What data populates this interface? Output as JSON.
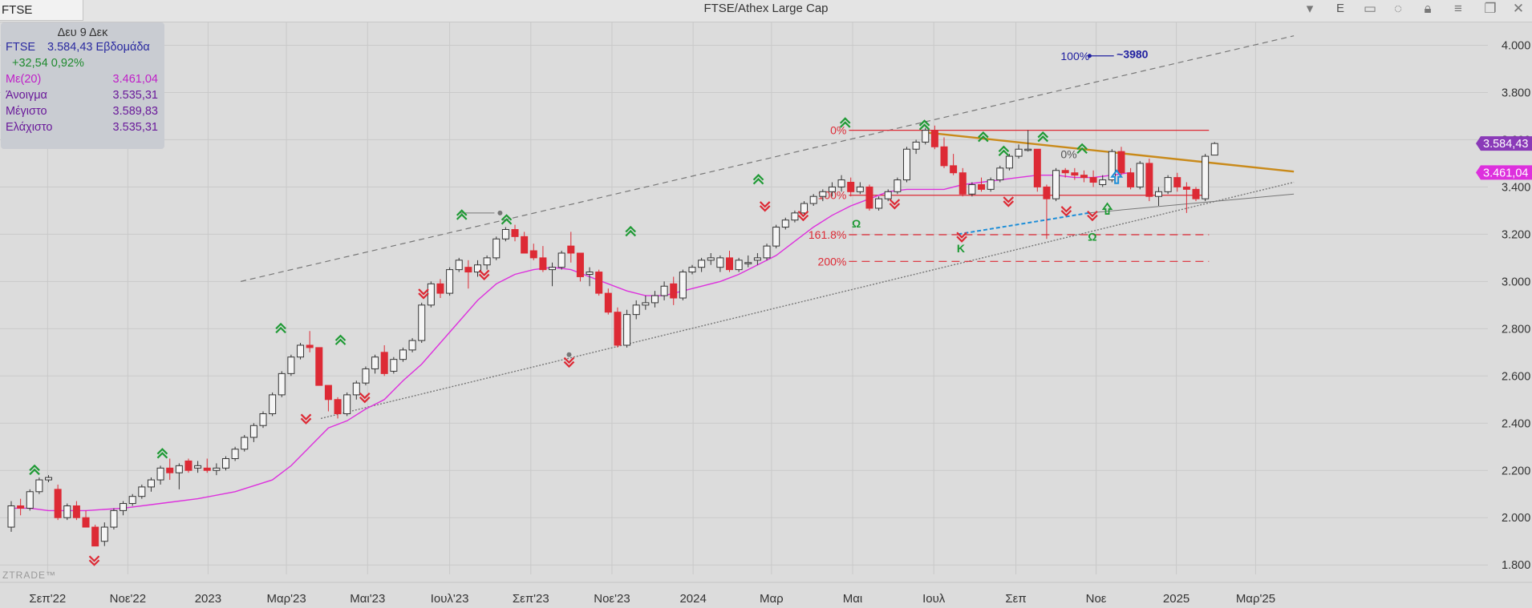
{
  "titlebar": {
    "symbol": "FTSE",
    "title": "FTSE/Athex Large Cap",
    "buttons": [
      "chevron-down-icon",
      "E",
      "layout-icon",
      "comment-icon",
      "lock-icon",
      "menu-icon",
      "restore-icon",
      "close-icon"
    ],
    "e_label": "E"
  },
  "info_panel": {
    "date": "Δευ 9 Δεκ",
    "symbol": "FTSE",
    "price_period": "3.584,43 Εβδομάδα",
    "change": "+32,54 0,92%",
    "ma_label": "Με(20)",
    "ma_value": "3.461,04",
    "open_label": "Άνοιγμα",
    "open_value": "3.535,31",
    "high_label": "Μέγιστο",
    "high_value": "3.589,83",
    "low_label": "Ελάχιστο",
    "low_value": "3.535,31"
  },
  "watermark": "ZTRADE™",
  "colors": {
    "bg": "#dcdcdc",
    "up": "#f5f5f5",
    "down": "#dd2a35",
    "ma": "#dd30dd",
    "orange": "#c98a1a",
    "blue": "#1e8ed8",
    "green": "#2a9a3a",
    "purple_text": "#8a1ea0"
  },
  "chart_data": {
    "type": "candlestick",
    "title": "FTSE/Athex Large Cap",
    "interval": "weekly",
    "ylim": [
      1760,
      4100
    ],
    "y_ticks": [
      "1.800",
      "2.000",
      "2.200",
      "2.400",
      "2.600",
      "2.800",
      "3.000",
      "3.200",
      "3.400",
      "3.600",
      "3.800",
      "4.000"
    ],
    "y_tick_values": [
      1800,
      2000,
      2200,
      2400,
      2600,
      2800,
      3000,
      3200,
      3400,
      3600,
      3800,
      4000
    ],
    "x_ticks": [
      "Σεπ'22",
      "Νοε'22",
      "2023",
      "Μαρ'23",
      "Μαι'23",
      "Ιουλ'23",
      "Σεπ'23",
      "Νοε'23",
      "2024",
      "Μαρ",
      "Μαι",
      "Ιουλ",
      "Σεπ",
      "Νοε",
      "2025",
      "Μαρ'25"
    ],
    "x_tick_weeks": [
      3.9,
      12.5,
      21.1,
      29.5,
      38.2,
      47.0,
      55.7,
      64.4,
      73.1,
      81.5,
      90.2,
      98.9,
      107.7,
      116.3,
      124.9,
      133.4
    ],
    "current_price_label": "3.584,43",
    "ma_price_label": "3.461,04",
    "candles": [
      [
        1960,
        2070,
        1940,
        2050
      ],
      [
        2050,
        2080,
        2010,
        2040
      ],
      [
        2040,
        2120,
        2030,
        2110
      ],
      [
        2110,
        2170,
        2100,
        2160
      ],
      [
        2160,
        2180,
        2150,
        2170
      ],
      [
        2120,
        2140,
        1990,
        2000
      ],
      [
        2000,
        2060,
        1990,
        2050
      ],
      [
        2050,
        2070,
        1990,
        2000
      ],
      [
        2000,
        2030,
        1960,
        1960
      ],
      [
        1960,
        1970,
        1880,
        1880
      ],
      [
        1900,
        1980,
        1880,
        1960
      ],
      [
        1960,
        2040,
        1950,
        2030
      ],
      [
        2030,
        2070,
        2010,
        2060
      ],
      [
        2060,
        2100,
        2050,
        2090
      ],
      [
        2090,
        2140,
        2080,
        2130
      ],
      [
        2130,
        2170,
        2110,
        2160
      ],
      [
        2160,
        2220,
        2140,
        2210
      ],
      [
        2210,
        2250,
        2160,
        2190
      ],
      [
        2190,
        2230,
        2120,
        2220
      ],
      [
        2240,
        2250,
        2190,
        2200
      ],
      [
        2210,
        2240,
        2190,
        2220
      ],
      [
        2210,
        2250,
        2190,
        2200
      ],
      [
        2200,
        2230,
        2180,
        2210
      ],
      [
        2210,
        2260,
        2200,
        2250
      ],
      [
        2250,
        2300,
        2240,
        2290
      ],
      [
        2290,
        2350,
        2280,
        2340
      ],
      [
        2340,
        2400,
        2320,
        2390
      ],
      [
        2390,
        2450,
        2380,
        2440
      ],
      [
        2440,
        2530,
        2430,
        2520
      ],
      [
        2520,
        2620,
        2510,
        2610
      ],
      [
        2610,
        2690,
        2600,
        2680
      ],
      [
        2680,
        2740,
        2670,
        2730
      ],
      [
        2730,
        2790,
        2700,
        2720
      ],
      [
        2720,
        2720,
        2560,
        2560
      ],
      [
        2560,
        2560,
        2450,
        2500
      ],
      [
        2500,
        2510,
        2420,
        2440
      ],
      [
        2440,
        2530,
        2430,
        2520
      ],
      [
        2520,
        2580,
        2500,
        2570
      ],
      [
        2570,
        2640,
        2560,
        2630
      ],
      [
        2630,
        2690,
        2610,
        2680
      ],
      [
        2700,
        2730,
        2600,
        2610
      ],
      [
        2620,
        2680,
        2610,
        2670
      ],
      [
        2670,
        2720,
        2660,
        2710
      ],
      [
        2710,
        2760,
        2700,
        2750
      ],
      [
        2750,
        2910,
        2740,
        2900
      ],
      [
        2900,
        3000,
        2890,
        2990
      ],
      [
        2990,
        3010,
        2930,
        2950
      ],
      [
        2950,
        3060,
        2940,
        3050
      ],
      [
        3050,
        3100,
        3040,
        3090
      ],
      [
        3060,
        3090,
        2970,
        3040
      ],
      [
        3040,
        3090,
        3020,
        3070
      ],
      [
        3070,
        3110,
        3050,
        3100
      ],
      [
        3100,
        3190,
        3090,
        3180
      ],
      [
        3180,
        3230,
        3170,
        3220
      ],
      [
        3220,
        3240,
        3170,
        3190
      ],
      [
        3190,
        3210,
        3120,
        3120
      ],
      [
        3130,
        3160,
        3090,
        3100
      ],
      [
        3100,
        3150,
        3040,
        3050
      ],
      [
        3050,
        3080,
        2980,
        3060
      ],
      [
        3060,
        3130,
        3050,
        3120
      ],
      [
        3150,
        3210,
        3080,
        3120
      ],
      [
        3120,
        3120,
        3000,
        3020
      ],
      [
        3030,
        3060,
        2980,
        3040
      ],
      [
        3040,
        3050,
        2940,
        2950
      ],
      [
        2950,
        2970,
        2860,
        2870
      ],
      [
        2870,
        2890,
        2720,
        2730
      ],
      [
        2730,
        2880,
        2720,
        2860
      ],
      [
        2860,
        2920,
        2840,
        2900
      ],
      [
        2900,
        2940,
        2880,
        2910
      ],
      [
        2910,
        2960,
        2890,
        2940
      ],
      [
        2940,
        3000,
        2920,
        2980
      ],
      [
        2990,
        3020,
        2900,
        2930
      ],
      [
        2930,
        3050,
        2920,
        3040
      ],
      [
        3040,
        3070,
        3030,
        3060
      ],
      [
        3060,
        3100,
        3040,
        3090
      ],
      [
        3090,
        3120,
        3070,
        3100
      ],
      [
        3060,
        3110,
        3040,
        3100
      ],
      [
        3100,
        3130,
        3040,
        3050
      ],
      [
        3050,
        3100,
        3040,
        3090
      ],
      [
        3080,
        3110,
        3060,
        3080
      ],
      [
        3090,
        3120,
        3070,
        3100
      ],
      [
        3100,
        3160,
        3090,
        3150
      ],
      [
        3150,
        3240,
        3140,
        3230
      ],
      [
        3230,
        3270,
        3220,
        3260
      ],
      [
        3260,
        3300,
        3250,
        3290
      ],
      [
        3290,
        3340,
        3280,
        3330
      ],
      [
        3330,
        3370,
        3320,
        3360
      ],
      [
        3360,
        3390,
        3340,
        3380
      ],
      [
        3380,
        3420,
        3360,
        3400
      ],
      [
        3400,
        3450,
        3380,
        3430
      ],
      [
        3420,
        3440,
        3360,
        3380
      ],
      [
        3380,
        3420,
        3370,
        3400
      ],
      [
        3400,
        3410,
        3300,
        3310
      ],
      [
        3310,
        3360,
        3300,
        3350
      ],
      [
        3350,
        3390,
        3340,
        3380
      ],
      [
        3380,
        3440,
        3370,
        3430
      ],
      [
        3430,
        3570,
        3420,
        3560
      ],
      [
        3560,
        3600,
        3540,
        3590
      ],
      [
        3590,
        3650,
        3580,
        3640
      ],
      [
        3640,
        3660,
        3560,
        3570
      ],
      [
        3570,
        3610,
        3480,
        3490
      ],
      [
        3490,
        3540,
        3450,
        3460
      ],
      [
        3460,
        3480,
        3360,
        3370
      ],
      [
        3370,
        3420,
        3360,
        3410
      ],
      [
        3410,
        3440,
        3380,
        3390
      ],
      [
        3390,
        3440,
        3380,
        3430
      ],
      [
        3430,
        3490,
        3420,
        3480
      ],
      [
        3480,
        3540,
        3470,
        3530
      ],
      [
        3530,
        3580,
        3520,
        3560
      ],
      [
        3560,
        3640,
        3550,
        3560
      ],
      [
        3560,
        3560,
        3380,
        3400
      ],
      [
        3400,
        3410,
        3180,
        3350
      ],
      [
        3350,
        3480,
        3340,
        3470
      ],
      [
        3470,
        3480,
        3440,
        3460
      ],
      [
        3460,
        3480,
        3430,
        3450
      ],
      [
        3450,
        3470,
        3420,
        3440
      ],
      [
        3440,
        3470,
        3400,
        3420
      ],
      [
        3410,
        3450,
        3400,
        3430
      ],
      [
        3430,
        3560,
        3420,
        3550
      ],
      [
        3550,
        3570,
        3450,
        3460
      ],
      [
        3460,
        3480,
        3390,
        3400
      ],
      [
        3400,
        3510,
        3390,
        3500
      ],
      [
        3500,
        3520,
        3340,
        3360
      ],
      [
        3360,
        3400,
        3320,
        3380
      ],
      [
        3380,
        3450,
        3370,
        3440
      ],
      [
        3440,
        3460,
        3380,
        3400
      ],
      [
        3400,
        3420,
        3290,
        3390
      ],
      [
        3390,
        3400,
        3340,
        3350
      ],
      [
        3350,
        3540,
        3340,
        3530
      ],
      [
        3535,
        3590,
        3535,
        3584
      ]
    ],
    "ma20": [
      [
        0,
        2040
      ],
      [
        2,
        2040
      ],
      [
        4,
        2030
      ],
      [
        8,
        2030
      ],
      [
        12,
        2040
      ],
      [
        16,
        2060
      ],
      [
        20,
        2080
      ],
      [
        24,
        2110
      ],
      [
        28,
        2160
      ],
      [
        30,
        2220
      ],
      [
        32,
        2300
      ],
      [
        34,
        2380
      ],
      [
        36,
        2410
      ],
      [
        38,
        2460
      ],
      [
        40,
        2500
      ],
      [
        42,
        2580
      ],
      [
        44,
        2650
      ],
      [
        46,
        2740
      ],
      [
        48,
        2830
      ],
      [
        50,
        2920
      ],
      [
        52,
        2990
      ],
      [
        54,
        3030
      ],
      [
        56,
        3050
      ],
      [
        58,
        3060
      ],
      [
        60,
        3050
      ],
      [
        62,
        3020
      ],
      [
        64,
        2990
      ],
      [
        66,
        2960
      ],
      [
        68,
        2940
      ],
      [
        70,
        2940
      ],
      [
        72,
        2960
      ],
      [
        74,
        2980
      ],
      [
        76,
        3000
      ],
      [
        78,
        3030
      ],
      [
        80,
        3070
      ],
      [
        82,
        3110
      ],
      [
        84,
        3170
      ],
      [
        86,
        3230
      ],
      [
        88,
        3280
      ],
      [
        90,
        3320
      ],
      [
        92,
        3350
      ],
      [
        94,
        3380
      ],
      [
        96,
        3390
      ],
      [
        98,
        3390
      ],
      [
        100,
        3390
      ],
      [
        102,
        3410
      ],
      [
        104,
        3420
      ],
      [
        106,
        3430
      ],
      [
        108,
        3440
      ],
      [
        110,
        3450
      ],
      [
        112,
        3450
      ],
      [
        114,
        3440
      ],
      [
        116,
        3440
      ],
      [
        118,
        3450
      ],
      [
        120,
        3461
      ]
    ],
    "annotations": {
      "fib_labels": [
        "0%",
        "100%",
        "161.8%",
        "200%"
      ],
      "fib_right_labels": [
        "0%",
        "100%"
      ],
      "target_label": "100%",
      "target_value_label": "~3980",
      "pattern_letters": [
        "Ω",
        "Ω",
        "K"
      ]
    }
  }
}
